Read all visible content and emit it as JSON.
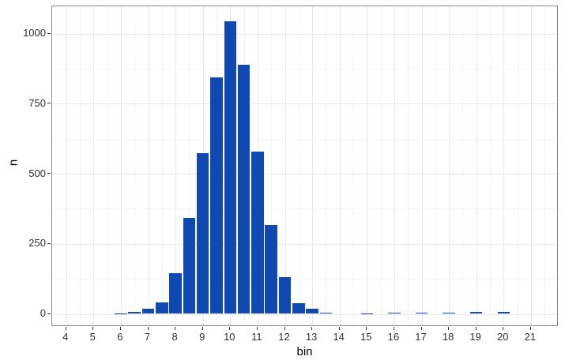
{
  "chart_data": {
    "type": "bar",
    "subtype": "histogram",
    "title": "",
    "xlabel": "bin",
    "ylabel": "n",
    "legend": "none",
    "grid": "on",
    "bar_color": "#1149B2",
    "bar_width_data": 0.45,
    "x_tick_labels": [
      "4",
      "5",
      "6",
      "7",
      "8",
      "9",
      "10",
      "11",
      "12",
      "13",
      "14",
      "15",
      "16",
      "17",
      "18",
      "19",
      "20",
      "21"
    ],
    "x_ticks": [
      4,
      5,
      6,
      7,
      8,
      9,
      10,
      11,
      12,
      13,
      14,
      15,
      16,
      17,
      18,
      19,
      20,
      21
    ],
    "y_tick_labels": [
      "0",
      "250",
      "500",
      "750",
      "1000"
    ],
    "y_ticks": [
      0,
      250,
      500,
      750,
      1000
    ],
    "y_minor_ticks": [
      125,
      375,
      625,
      875
    ],
    "xlim": [
      3.5,
      22.0
    ],
    "ylim": [
      -52,
      1097
    ],
    "bins": [
      {
        "x": 6,
        "n": 2
      },
      {
        "x": 6.5,
        "n": 7
      },
      {
        "x": 7,
        "n": 17
      },
      {
        "x": 7.5,
        "n": 40
      },
      {
        "x": 8,
        "n": 145
      },
      {
        "x": 8.5,
        "n": 342
      },
      {
        "x": 9,
        "n": 574
      },
      {
        "x": 9.5,
        "n": 845
      },
      {
        "x": 10,
        "n": 1043
      },
      {
        "x": 10.5,
        "n": 888
      },
      {
        "x": 11,
        "n": 579
      },
      {
        "x": 11.5,
        "n": 317
      },
      {
        "x": 12,
        "n": 131
      },
      {
        "x": 12.5,
        "n": 38
      },
      {
        "x": 13,
        "n": 17
      },
      {
        "x": 13.5,
        "n": 4
      },
      {
        "x": 15,
        "n": 2
      },
      {
        "x": 16,
        "n": 5
      },
      {
        "x": 17,
        "n": 5
      },
      {
        "x": 18,
        "n": 5
      },
      {
        "x": 19,
        "n": 8
      },
      {
        "x": 20,
        "n": 8
      }
    ]
  },
  "figure_style": {
    "background": "#ffffff",
    "panel_border_color": "#8a8a8a",
    "grid_major_color": "#e7e7e7",
    "grid_minor_color": "#f4f4f4",
    "tick_color": "#333333",
    "tick_label_color": "#303030",
    "axis_title_color": "#000000"
  }
}
